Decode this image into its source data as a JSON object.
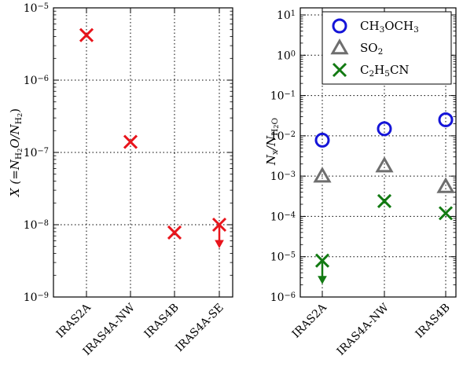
{
  "chart_data": [
    {
      "type": "scatter",
      "title": "",
      "y_scale": "log",
      "ylim": [
        1e-09,
        1e-05
      ],
      "y_ticks": [
        {
          "value": 1e-09,
          "base": "10",
          "exp": "−9"
        },
        {
          "value": 1e-08,
          "base": "10",
          "exp": "−8"
        },
        {
          "value": 1e-07,
          "base": "10",
          "exp": "−7"
        },
        {
          "value": 1e-06,
          "base": "10",
          "exp": "−6"
        },
        {
          "value": 1e-05,
          "base": "10",
          "exp": "−5"
        }
      ],
      "ylabel": {
        "main": "X (=N",
        "sub1": "H",
        "sub1b": "2",
        "mid": "O/N",
        "sub2": "H",
        "sub2b": "2",
        "end": ")"
      },
      "grid": true,
      "categories": [
        "IRAS2A",
        "IRAS4A-NW",
        "IRAS4B",
        "IRAS4A-SE"
      ],
      "series": [
        {
          "marker": "x",
          "color": "#e8151c",
          "values": [
            4.2e-06,
            1.4e-07,
            7.8e-09,
            1e-08
          ],
          "upper_limit": [
            false,
            false,
            false,
            true
          ]
        }
      ]
    },
    {
      "type": "scatter",
      "title": "",
      "y_scale": "log",
      "ylim": [
        1e-06,
        15
      ],
      "y_ticks": [
        {
          "value": 1e-06,
          "base": "10",
          "exp": "−6"
        },
        {
          "value": 1e-05,
          "base": "10",
          "exp": "−5"
        },
        {
          "value": 0.0001,
          "base": "10",
          "exp": "−4"
        },
        {
          "value": 0.001,
          "base": "10",
          "exp": "−3"
        },
        {
          "value": 0.01,
          "base": "10",
          "exp": "−2"
        },
        {
          "value": 0.1,
          "base": "10",
          "exp": "−1"
        },
        {
          "value": 1,
          "base": "10",
          "exp": "0"
        },
        {
          "value": 10,
          "base": "10",
          "exp": "1"
        }
      ],
      "ylabel": {
        "main": "N",
        "sub1": "x",
        "mid": "/N",
        "sub2": "H",
        "sub2b": "2",
        "end": "O"
      },
      "grid": true,
      "legend_position": "top-right",
      "categories": [
        "IRAS2A",
        "IRAS4A-NW",
        "IRAS4B"
      ],
      "series": [
        {
          "name": "CH3OCH3",
          "name_parts": [
            [
              "CH",
              ""
            ],
            [
              "3",
              "sub"
            ],
            [
              "OCH",
              ""
            ],
            [
              "3",
              "sub"
            ]
          ],
          "marker": "circle",
          "color": "#1515d8",
          "values": [
            0.0078,
            0.015,
            0.025
          ],
          "upper_limit": [
            false,
            false,
            false
          ]
        },
        {
          "name": "SO2",
          "name_parts": [
            [
              "SO",
              ""
            ],
            [
              "2",
              "sub"
            ]
          ],
          "marker": "triangle",
          "color": "#6e6e6e",
          "values": [
            0.001,
            0.0018,
            0.00055
          ],
          "upper_limit": [
            false,
            false,
            false
          ]
        },
        {
          "name": "C2H5CN",
          "name_parts": [
            [
              "C",
              ""
            ],
            [
              "2",
              "sub"
            ],
            [
              "H",
              ""
            ],
            [
              "5",
              "sub"
            ],
            [
              "CN",
              ""
            ]
          ],
          "marker": "x",
          "color": "#127a12",
          "values": [
            8e-06,
            0.00024,
            0.00012
          ],
          "upper_limit": [
            true,
            false,
            false
          ]
        }
      ]
    }
  ]
}
